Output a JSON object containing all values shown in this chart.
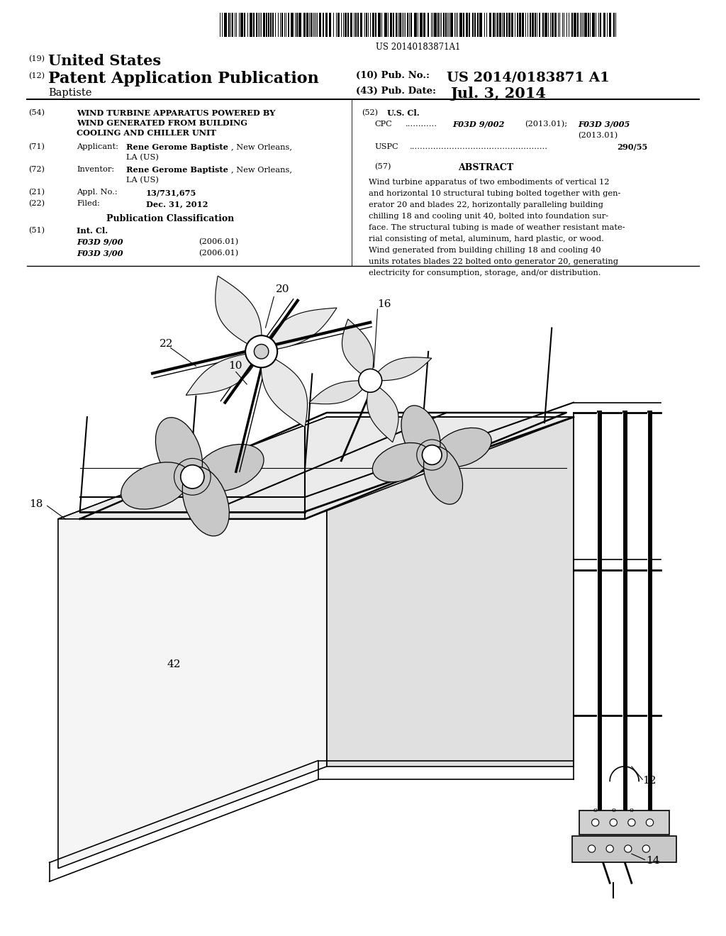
{
  "background_color": "#ffffff",
  "barcode_text": "US 20140183871A1",
  "header": {
    "country_label": "(19)",
    "country": "United States",
    "type_label": "(12)",
    "type": "Patent Application Publication",
    "inventor_surname": "Baptiste",
    "pub_no_label": "(10) Pub. No.:",
    "pub_no": "US 2014/0183871 A1",
    "pub_date_label": "(43) Pub. Date:",
    "pub_date": "Jul. 3, 2014"
  },
  "left_column": {
    "title_num": "(54)",
    "title_line1": "WIND TURBINE APPARATUS POWERED BY",
    "title_line2": "WIND GENERATED FROM BUILDING",
    "title_line3": "COOLING AND CHILLER UNIT",
    "applicant_num": "(71)",
    "applicant_label": "Applicant:",
    "applicant_bold": "Rene Gerome Baptiste",
    "applicant_rest": ", New Orleans,",
    "applicant_city": "LA (US)",
    "inventor_num": "(72)",
    "inventor_label": "Inventor:",
    "inventor_bold": "Rene Gerome Baptiste",
    "inventor_rest": ", New Orleans,",
    "inventor_city": "LA (US)",
    "appl_num": "(21)",
    "appl_label": "Appl. No.:",
    "appl_no": "13/731,675",
    "filed_num": "(22)",
    "filed_label": "Filed:",
    "filed_date": "Dec. 31, 2012",
    "pub_class_header": "Publication Classification",
    "int_cl_num": "(51)",
    "int_cl_label": "Int. Cl.",
    "int_cl_1": "F03D 9/00",
    "int_cl_1_date": "(2006.01)",
    "int_cl_2": "F03D 3/00",
    "int_cl_2_date": "(2006.01)"
  },
  "right_column": {
    "us_cl_num": "(52)",
    "us_cl_label": "U.S. Cl.",
    "abstract_num": "(57)",
    "abstract_header": "ABSTRACT",
    "abstract_text": "Wind turbine apparatus of two embodiments of vertical 12\nand horizontal 10 structural tubing bolted together with gen-\nerator 20 and blades 22, horizontally paralleling building\nchilling 18 and cooling unit 40, bolted into foundation sur-\nface. The structural tubing is made of weather resistant mate-\nrial consisting of metal, aluminum, hard plastic, or wood.\nWind generated from building chilling 18 and cooling 40\nunits rotates blades 22 bolted onto generator 20, generating\nelectricity for consumption, storage, and/or distribution."
  }
}
